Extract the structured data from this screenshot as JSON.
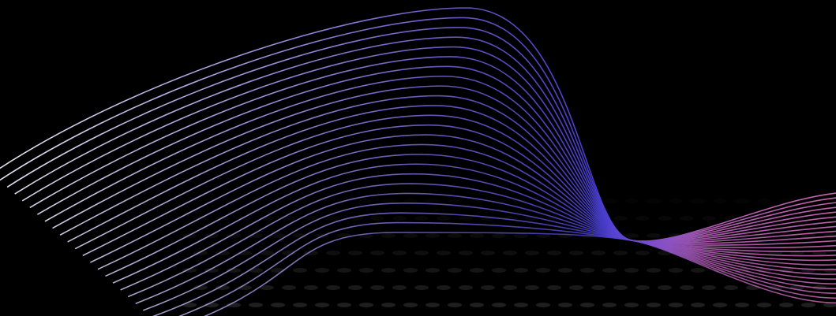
{
  "scene": {
    "background_color": "#000000",
    "wave": {
      "line_count": 24,
      "colors": [
        "#f4f0ff",
        "#a79de6",
        "#6a5acd",
        "#4a3fd6",
        "#b85fb8",
        "#d06cb8"
      ]
    },
    "texture": {
      "dot_color": "#3a3a3a"
    }
  }
}
